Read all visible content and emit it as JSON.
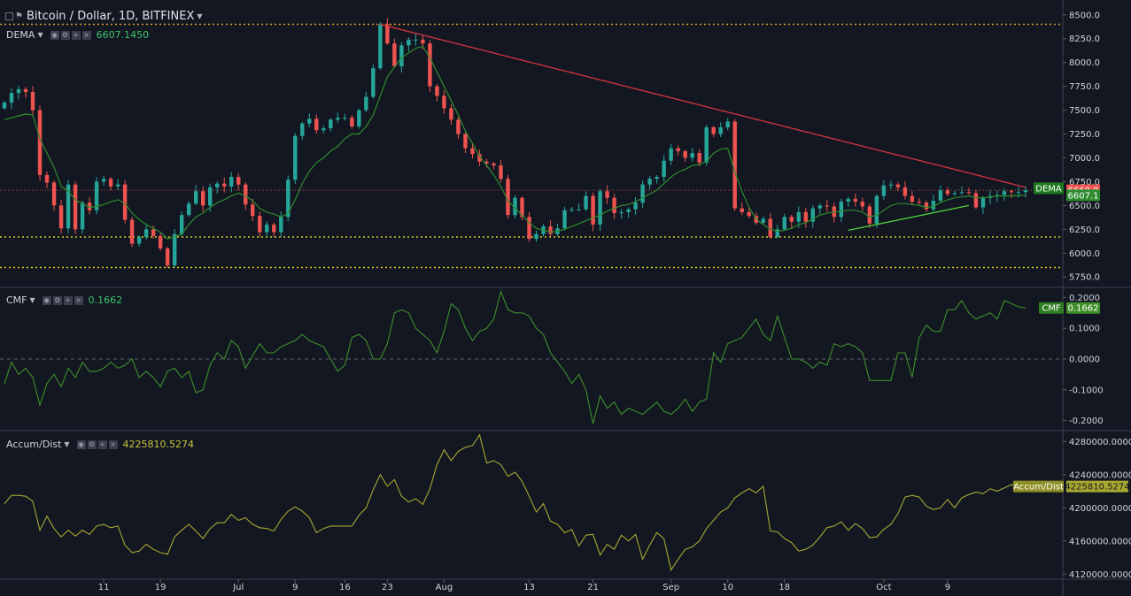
{
  "header": {
    "title": "Bitcoin / Dollar, 1D, BITFINEX",
    "dema_label": "DEMA",
    "dema_value": "6607.1450",
    "cmf_label": "CMF",
    "cmf_value": "0.1662",
    "ad_label": "Accum/Dist",
    "ad_value": "4225810.5274"
  },
  "colors": {
    "background": "#131722",
    "up": "#26a69a",
    "down": "#ef5350",
    "dema": "#2e8b2e",
    "cmf": "#3f8f2a",
    "ad": "#a8a830",
    "resistance": "#d0333f",
    "support": "#4fd13a",
    "dotted_orange": "#e39b2a",
    "dotted_yellow": "#d8cc20"
  },
  "chart_data": [
    {
      "type": "candlestick",
      "title": "Bitcoin / Dollar, 1D, BITFINEX",
      "ylim": [
        5650,
        8600
      ],
      "y_ticks": [
        "8500.0",
        "8250.0",
        "8000.0",
        "7750.0",
        "7500.0",
        "7250.0",
        "7000.0",
        "6750.0",
        "6500.0",
        "6250.0",
        "6000.0",
        "5750.0"
      ],
      "x_ticks": [
        "11",
        "19",
        "Jul",
        "9",
        "16",
        "23",
        "Aug",
        "13",
        "21",
        "Sep",
        "10",
        "18",
        "Oct",
        "9"
      ],
      "close": [
        7580,
        7680,
        7720,
        7690,
        7500,
        6820,
        6740,
        6500,
        6260,
        6720,
        6250,
        6530,
        6450,
        6750,
        6780,
        6700,
        6720,
        6350,
        6100,
        6170,
        6250,
        6180,
        6050,
        5870,
        6200,
        6400,
        6520,
        6650,
        6500,
        6690,
        6730,
        6700,
        6800,
        6720,
        6510,
        6390,
        6220,
        6300,
        6220,
        6380,
        6770,
        7230,
        7360,
        7410,
        7290,
        7310,
        7400,
        7420,
        7420,
        7330,
        7500,
        7640,
        7940,
        8400,
        8200,
        7960,
        8180,
        8240,
        8240,
        8200,
        7750,
        7650,
        7520,
        7400,
        7250,
        7100,
        7040,
        6960,
        6940,
        6920,
        6780,
        6400,
        6580,
        6380,
        6150,
        6200,
        6280,
        6200,
        6260,
        6450,
        6460,
        6460,
        6600,
        6300,
        6650,
        6580,
        6420,
        6430,
        6460,
        6530,
        6720,
        6780,
        6800,
        6970,
        7100,
        7070,
        7000,
        7050,
        6950,
        7320,
        7250,
        7320,
        7380,
        6470,
        6430,
        6390,
        6320,
        6360,
        6170,
        6250,
        6380,
        6330,
        6430,
        6330,
        6470,
        6500,
        6490,
        6380,
        6540,
        6570,
        6540,
        6490,
        6310,
        6600,
        6710,
        6720,
        6690,
        6600,
        6540,
        6530,
        6460,
        6550,
        6660,
        6620,
        6630,
        6640,
        6630,
        6480,
        6580,
        6600,
        6610,
        6650,
        6640,
        6640,
        6660
      ],
      "dema": [
        7400,
        7420,
        7440,
        7460,
        7450,
        7200,
        7050,
        6900,
        6700,
        6650,
        6560,
        6520,
        6480,
        6490,
        6510,
        6540,
        6560,
        6520,
        6420,
        6350,
        6300,
        6260,
        6220,
        6150,
        6170,
        6200,
        6300,
        6380,
        6420,
        6480,
        6530,
        6560,
        6600,
        6630,
        6600,
        6550,
        6470,
        6430,
        6410,
        6380,
        6420,
        6560,
        6730,
        6860,
        6950,
        7000,
        7070,
        7120,
        7200,
        7250,
        7250,
        7330,
        7450,
        7650,
        7850,
        7950,
        8050,
        8100,
        8150,
        8170,
        8050,
        7900,
        7750,
        7600,
        7450,
        7280,
        7150,
        7020,
        6920,
        6820,
        6700,
        6550,
        6470,
        6400,
        6320,
        6260,
        6240,
        6220,
        6230,
        6250,
        6280,
        6310,
        6340,
        6370,
        6400,
        6440,
        6470,
        6500,
        6510,
        6540,
        6580,
        6620,
        6660,
        6730,
        6800,
        6850,
        6880,
        6920,
        6930,
        6960,
        7050,
        7090,
        7100,
        6850,
        6650,
        6480,
        6360,
        6300,
        6250,
        6230,
        6240,
        6260,
        6300,
        6320,
        6360,
        6400,
        6420,
        6430,
        6440,
        6450,
        6450,
        6430,
        6380,
        6400,
        6450,
        6500,
        6520,
        6520,
        6510,
        6500,
        6480,
        6490,
        6530,
        6560,
        6580,
        6590,
        6600,
        6580,
        6580,
        6590,
        6600,
        6600,
        6600,
        6605,
        6607
      ]
    },
    {
      "type": "line",
      "title": "CMF",
      "ylim": [
        -0.23,
        0.23
      ],
      "y_ticks": [
        "0.2000",
        "0.1000",
        "0.0000",
        "-0.1000",
        "-0.2000"
      ],
      "values": [
        -0.08,
        -0.01,
        -0.05,
        -0.03,
        -0.06,
        -0.15,
        -0.08,
        -0.05,
        -0.09,
        -0.03,
        -0.06,
        -0.01,
        -0.04,
        -0.04,
        -0.03,
        -0.01,
        -0.03,
        -0.02,
        0.0,
        -0.06,
        -0.04,
        -0.06,
        -0.09,
        -0.04,
        -0.03,
        -0.06,
        -0.04,
        -0.11,
        -0.1,
        -0.02,
        0.02,
        0.0,
        0.06,
        0.04,
        -0.03,
        0.01,
        0.05,
        0.02,
        0.02,
        0.04,
        0.05,
        0.06,
        0.08,
        0.06,
        0.05,
        0.04,
        0.0,
        -0.04,
        -0.02,
        0.07,
        0.08,
        0.06,
        0.0,
        0.0,
        0.05,
        0.15,
        0.16,
        0.15,
        0.1,
        0.08,
        0.06,
        0.02,
        0.09,
        0.18,
        0.16,
        0.1,
        0.06,
        0.09,
        0.1,
        0.13,
        0.22,
        0.16,
        0.15,
        0.15,
        0.14,
        0.1,
        0.08,
        0.02,
        -0.01,
        -0.04,
        -0.08,
        -0.05,
        -0.1,
        -0.21,
        -0.12,
        -0.16,
        -0.14,
        -0.18,
        -0.16,
        -0.17,
        -0.18,
        -0.16,
        -0.14,
        -0.17,
        -0.18,
        -0.16,
        -0.13,
        -0.17,
        -0.14,
        -0.13,
        0.02,
        -0.01,
        0.05,
        0.06,
        0.07,
        0.1,
        0.13,
        0.08,
        0.06,
        0.14,
        0.07,
        0.0,
        0.0,
        -0.01,
        -0.03,
        -0.01,
        -0.02,
        0.05,
        0.04,
        0.05,
        0.04,
        0.02,
        -0.07,
        -0.07,
        -0.07,
        -0.07,
        0.02,
        0.02,
        -0.06,
        0.07,
        0.11,
        0.09,
        0.09,
        0.16,
        0.16,
        0.19,
        0.15,
        0.13,
        0.14,
        0.15,
        0.13,
        0.19,
        0.18,
        0.17,
        0.1662
      ]
    },
    {
      "type": "line",
      "title": "Accum/Dist",
      "ylim": [
        4115000,
        4292000
      ],
      "y_ticks": [
        "4280000.0000",
        "4240000.0000",
        "4200000.0000",
        "4160000.0000",
        "4120000.0000"
      ],
      "values": [
        4205000,
        4215000,
        4215000,
        4214000,
        4208000,
        4173000,
        4190000,
        4175000,
        4165000,
        4173000,
        4166000,
        4173000,
        4168000,
        4178000,
        4180000,
        4176000,
        4178000,
        4155000,
        4146000,
        4148000,
        4156000,
        4150000,
        4146000,
        4144000,
        4165000,
        4173000,
        4180000,
        4172000,
        4163000,
        4175000,
        4182000,
        4182000,
        4192000,
        4185000,
        4188000,
        4180000,
        4176000,
        4175000,
        4172000,
        4186000,
        4196000,
        4201000,
        4196000,
        4188000,
        4170000,
        4175000,
        4178000,
        4178000,
        4178000,
        4178000,
        4191000,
        4200000,
        4222000,
        4240000,
        4226000,
        4234000,
        4214000,
        4207000,
        4211000,
        4204000,
        4223000,
        4252000,
        4270000,
        4257000,
        4268000,
        4273000,
        4275000,
        4288000,
        4254000,
        4257000,
        4252000,
        4238000,
        4243000,
        4232000,
        4214000,
        4195000,
        4205000,
        4184000,
        4180000,
        4170000,
        4174000,
        4154000,
        4167000,
        4168000,
        4143000,
        4156000,
        4150000,
        4167000,
        4160000,
        4168000,
        4138000,
        4155000,
        4170000,
        4163000,
        4125000,
        4138000,
        4150000,
        4153000,
        4160000,
        4175000,
        4185000,
        4195000,
        4200000,
        4212000,
        4218000,
        4223000,
        4218000,
        4226000,
        4172000,
        4171000,
        4163000,
        4158000,
        4148000,
        4150000,
        4155000,
        4165000,
        4176000,
        4178000,
        4183000,
        4173000,
        4181000,
        4175000,
        4164000,
        4165000,
        4174000,
        4180000,
        4193000,
        4213000,
        4215000,
        4213000,
        4202000,
        4198000,
        4200000,
        4210000,
        4200000,
        4212000,
        4216000,
        4219000,
        4217000,
        4223000,
        4220000,
        4224000,
        4228000,
        4223000,
        4224000,
        4225810
      ]
    }
  ]
}
